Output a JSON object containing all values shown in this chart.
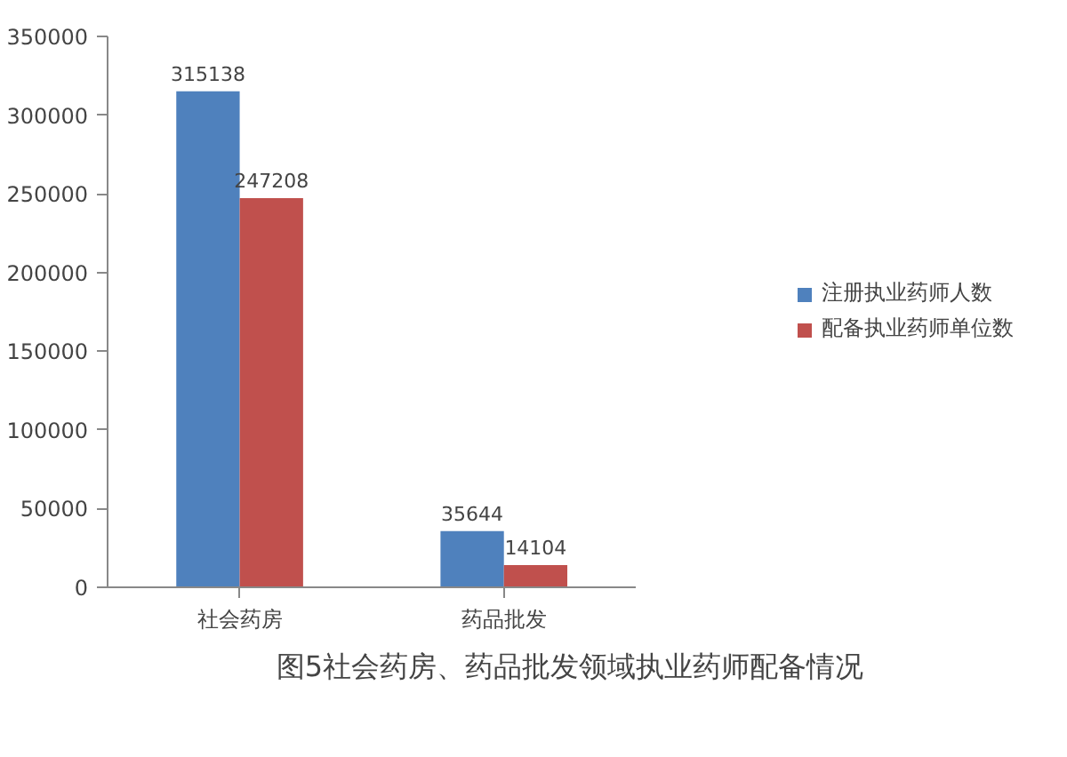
{
  "chart_data": {
    "type": "bar",
    "title": "图5社会药房、药品批发领域执业药师配备情况",
    "categories": [
      "社会药房",
      "药品批发"
    ],
    "series": [
      {
        "name": "注册执业药师人数",
        "color": "#4f81bd",
        "values": [
          315138,
          35644
        ]
      },
      {
        "name": "配备执业药师单位数",
        "color": "#c0504d",
        "values": [
          247208,
          14104
        ]
      }
    ],
    "ylim": [
      0,
      350000
    ],
    "yticks": [
      0,
      50000,
      100000,
      150000,
      200000,
      250000,
      300000,
      350000
    ],
    "grid": false,
    "legend": "right",
    "data_labels": true
  }
}
